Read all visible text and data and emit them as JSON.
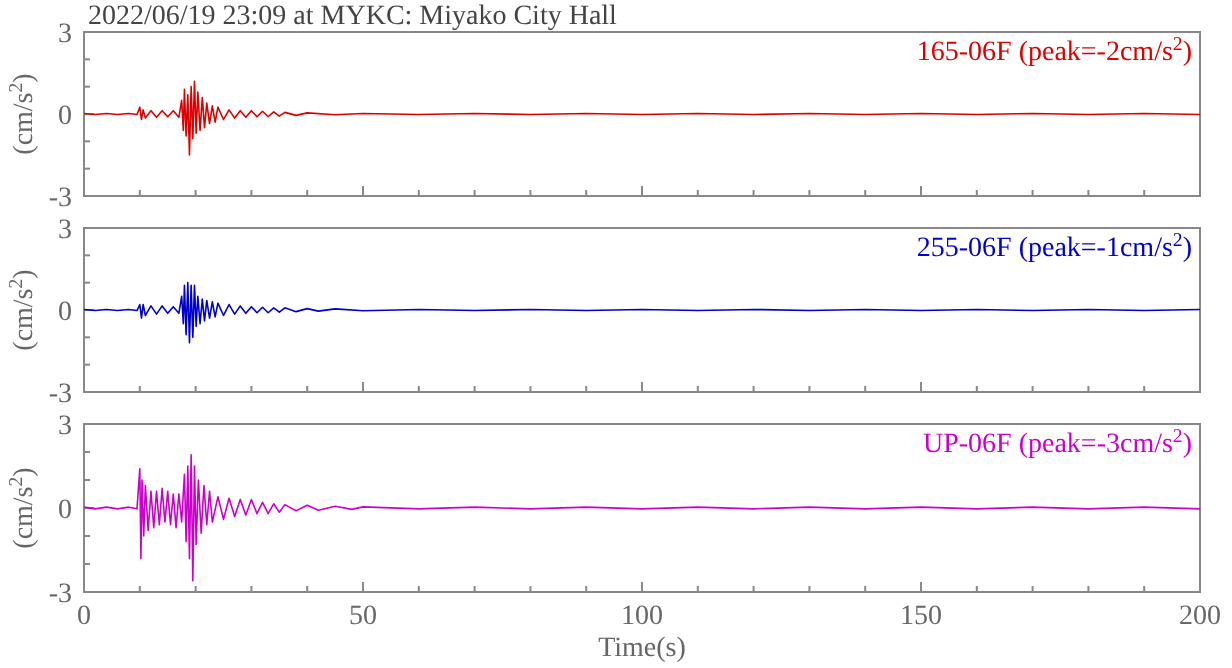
{
  "chart_data": [
    {
      "type": "line",
      "title": "2022/06/19 23:09 at MYKC: Miyako City Hall",
      "ylabel": "(cm/s$^{2}$)",
      "xlim": [
        0,
        200
      ],
      "ylim": [
        -3,
        3
      ],
      "xticks": [
        0,
        {
          "value": 10,
          "label": null
        },
        {
          "value": 20,
          "label": null
        },
        {
          "value": 30,
          "label": null
        },
        {
          "value": 40,
          "label": null
        },
        50,
        {
          "value": 60,
          "label": null
        },
        {
          "value": 70,
          "label": null
        },
        {
          "value": 80,
          "label": null
        },
        {
          "value": 90,
          "label": null
        },
        100,
        {
          "value": 110,
          "label": null
        },
        {
          "value": 120,
          "label": null
        },
        {
          "value": 130,
          "label": null
        },
        {
          "value": 140,
          "label": null
        },
        150,
        {
          "value": 160,
          "label": null
        },
        {
          "value": 170,
          "label": null
        },
        {
          "value": 180,
          "label": null
        },
        {
          "value": 190,
          "label": null
        },
        200
      ],
      "yticks": [
        -3,
        {
          "value": -2,
          "label": null
        },
        {
          "value": -1,
          "label": null
        },
        0,
        {
          "value": 1,
          "label": null
        },
        {
          "value": 2,
          "label": null
        },
        3
      ],
      "tick_labels": "y",
      "grid": false,
      "legend": "top right",
      "line_style": "solid",
      "marker": "none",
      "series": [
        {
          "name": "165-06F (peak=-2cm/s$^{2}$)",
          "color": "#dd0000",
          "x": [
            0,
            2,
            4,
            6,
            8,
            9.5,
            10,
            10.3,
            10.6,
            11,
            12,
            13,
            14,
            15,
            16,
            17,
            17.5,
            17.8,
            18,
            18.3,
            18.6,
            18.9,
            19.2,
            19.5,
            19.8,
            20.1,
            20.4,
            20.8,
            21.2,
            21.6,
            22,
            22.5,
            23,
            23.5,
            24,
            25,
            26,
            27,
            28,
            29,
            30,
            31,
            32,
            33,
            34,
            35,
            36,
            38,
            40,
            45,
            50,
            60,
            70,
            80,
            90,
            100,
            110,
            120,
            130,
            140,
            150,
            160,
            170,
            180,
            190,
            200
          ],
          "values": [
            0.02,
            -0.02,
            0.02,
            -0.02,
            0.02,
            -0.02,
            0.25,
            -0.2,
            0.15,
            -0.15,
            0.12,
            -0.12,
            0.12,
            -0.1,
            0.12,
            -0.12,
            0.5,
            -0.6,
            0.9,
            -0.8,
            0.7,
            -1.5,
            1.0,
            -0.9,
            1.2,
            -0.7,
            0.8,
            -0.6,
            0.6,
            -0.5,
            0.4,
            -0.35,
            0.3,
            -0.3,
            0.25,
            -0.2,
            0.15,
            -0.15,
            0.12,
            -0.12,
            0.12,
            -0.1,
            0.1,
            -0.1,
            0.08,
            -0.08,
            0.06,
            -0.05,
            0.04,
            -0.03,
            0.02,
            -0.02,
            0.02,
            -0.02,
            0.02,
            -0.02,
            0.02,
            -0.02,
            0.02,
            -0.02,
            0.02,
            -0.02,
            0.02,
            -0.02,
            0.02,
            -0.02
          ]
        }
      ]
    },
    {
      "type": "line",
      "ylabel": "(cm/s$^{2}$)",
      "xlim": [
        0,
        200
      ],
      "ylim": [
        -3,
        3
      ],
      "xticks": [
        0,
        {
          "value": 10,
          "label": null
        },
        {
          "value": 20,
          "label": null
        },
        {
          "value": 30,
          "label": null
        },
        {
          "value": 40,
          "label": null
        },
        50,
        {
          "value": 60,
          "label": null
        },
        {
          "value": 70,
          "label": null
        },
        {
          "value": 80,
          "label": null
        },
        {
          "value": 90,
          "label": null
        },
        100,
        {
          "value": 110,
          "label": null
        },
        {
          "value": 120,
          "label": null
        },
        {
          "value": 130,
          "label": null
        },
        {
          "value": 140,
          "label": null
        },
        150,
        {
          "value": 160,
          "label": null
        },
        {
          "value": 170,
          "label": null
        },
        {
          "value": 180,
          "label": null
        },
        {
          "value": 190,
          "label": null
        },
        200
      ],
      "yticks": [
        -3,
        {
          "value": -2,
          "label": null
        },
        {
          "value": -1,
          "label": null
        },
        0,
        {
          "value": 1,
          "label": null
        },
        {
          "value": 2,
          "label": null
        },
        3
      ],
      "tick_labels": "y",
      "grid": false,
      "legend": "top right",
      "line_style": "solid",
      "marker": "none",
      "series": [
        {
          "name": "255-06F (peak=-1cm/s$^{2}$)",
          "color": "#0000cc",
          "x": [
            0,
            2,
            4,
            6,
            8,
            9.5,
            10,
            10.3,
            10.6,
            11,
            12,
            13,
            14,
            15,
            16,
            17,
            17.5,
            17.8,
            18,
            18.3,
            18.6,
            18.9,
            19.2,
            19.5,
            19.8,
            20.1,
            20.4,
            20.8,
            21.2,
            21.6,
            22,
            22.5,
            23,
            23.5,
            24,
            25,
            26,
            27,
            28,
            29,
            30,
            31,
            32,
            33,
            34,
            35,
            36,
            38,
            40,
            42,
            45,
            50,
            60,
            70,
            80,
            90,
            100,
            110,
            120,
            130,
            140,
            150,
            160,
            170,
            180,
            190,
            200
          ],
          "values": [
            0.02,
            -0.02,
            0.02,
            -0.02,
            0.02,
            -0.02,
            0.2,
            -0.3,
            0.2,
            -0.2,
            0.15,
            -0.15,
            0.15,
            -0.12,
            0.12,
            -0.12,
            0.5,
            -0.5,
            0.9,
            -0.9,
            1.0,
            -1.2,
            0.9,
            -1.0,
            0.9,
            -0.6,
            0.5,
            -0.5,
            0.4,
            -0.4,
            0.35,
            -0.3,
            0.3,
            -0.25,
            0.25,
            -0.2,
            0.2,
            -0.15,
            0.15,
            -0.12,
            0.12,
            -0.1,
            0.1,
            -0.1,
            0.08,
            -0.08,
            0.08,
            -0.06,
            0.05,
            -0.04,
            0.04,
            -0.03,
            0.02,
            -0.02,
            0.02,
            -0.02,
            0.02,
            -0.02,
            0.02,
            -0.02,
            0.02,
            -0.02,
            0.02,
            -0.02,
            0.02,
            -0.02,
            0.02
          ]
        }
      ]
    },
    {
      "type": "line",
      "xlabel": "Time(s)",
      "ylabel": "(cm/s$^{2}$)",
      "xlim": [
        0,
        200
      ],
      "ylim": [
        -3,
        3
      ],
      "xticks": [
        0,
        {
          "value": 10,
          "label": null
        },
        {
          "value": 20,
          "label": null
        },
        {
          "value": 30,
          "label": null
        },
        {
          "value": 40,
          "label": null
        },
        50,
        {
          "value": 60,
          "label": null
        },
        {
          "value": 70,
          "label": null
        },
        {
          "value": 80,
          "label": null
        },
        {
          "value": 90,
          "label": null
        },
        100,
        {
          "value": 110,
          "label": null
        },
        {
          "value": 120,
          "label": null
        },
        {
          "value": 130,
          "label": null
        },
        {
          "value": 140,
          "label": null
        },
        150,
        {
          "value": 160,
          "label": null
        },
        {
          "value": 170,
          "label": null
        },
        {
          "value": 180,
          "label": null
        },
        {
          "value": 190,
          "label": null
        },
        200
      ],
      "yticks": [
        -3,
        {
          "value": -2,
          "label": null
        },
        {
          "value": -1,
          "label": null
        },
        0,
        {
          "value": 1,
          "label": null
        },
        {
          "value": 2,
          "label": null
        },
        3
      ],
      "grid": false,
      "legend": "top right",
      "line_style": "solid",
      "marker": "none",
      "series": [
        {
          "name": "UP-06F (peak=-3cm/s$^{2}$)",
          "color": "#cc00cc",
          "x": [
            0,
            2,
            4,
            6,
            8,
            9.5,
            10,
            10.2,
            10.4,
            10.7,
            11,
            11.5,
            12,
            12.5,
            13,
            13.5,
            14,
            14.5,
            15,
            15.5,
            16,
            16.5,
            17,
            17.5,
            18,
            18.3,
            18.6,
            18.9,
            19.2,
            19.5,
            19.8,
            20.1,
            20.5,
            21,
            21.5,
            22,
            22.5,
            23,
            24,
            25,
            26,
            27,
            28,
            29,
            30,
            31,
            32,
            33,
            34,
            35,
            36,
            38,
            40,
            42,
            45,
            48,
            50,
            60,
            70,
            80,
            90,
            100,
            110,
            120,
            130,
            140,
            150,
            160,
            170,
            180,
            190,
            200
          ],
          "values": [
            0.03,
            -0.03,
            0.03,
            -0.03,
            0.03,
            -0.03,
            1.4,
            -1.8,
            1.0,
            -1.0,
            0.8,
            -0.8,
            0.6,
            -0.7,
            0.6,
            -0.6,
            0.7,
            -0.5,
            0.6,
            -0.6,
            0.5,
            -0.7,
            0.5,
            -0.5,
            1.2,
            -1.2,
            1.5,
            -1.8,
            1.9,
            -2.6,
            1.5,
            -1.3,
            1.0,
            -0.9,
            0.8,
            -0.6,
            0.6,
            -0.5,
            0.4,
            -0.4,
            0.35,
            -0.3,
            0.3,
            -0.25,
            0.3,
            -0.2,
            0.2,
            -0.2,
            0.15,
            -0.15,
            0.12,
            -0.1,
            0.1,
            -0.08,
            0.06,
            -0.05,
            0.04,
            -0.03,
            0.03,
            -0.03,
            0.03,
            -0.03,
            0.03,
            -0.03,
            0.03,
            -0.03,
            0.03,
            -0.03,
            0.03,
            -0.03,
            0.03,
            -0.03
          ]
        }
      ]
    }
  ]
}
